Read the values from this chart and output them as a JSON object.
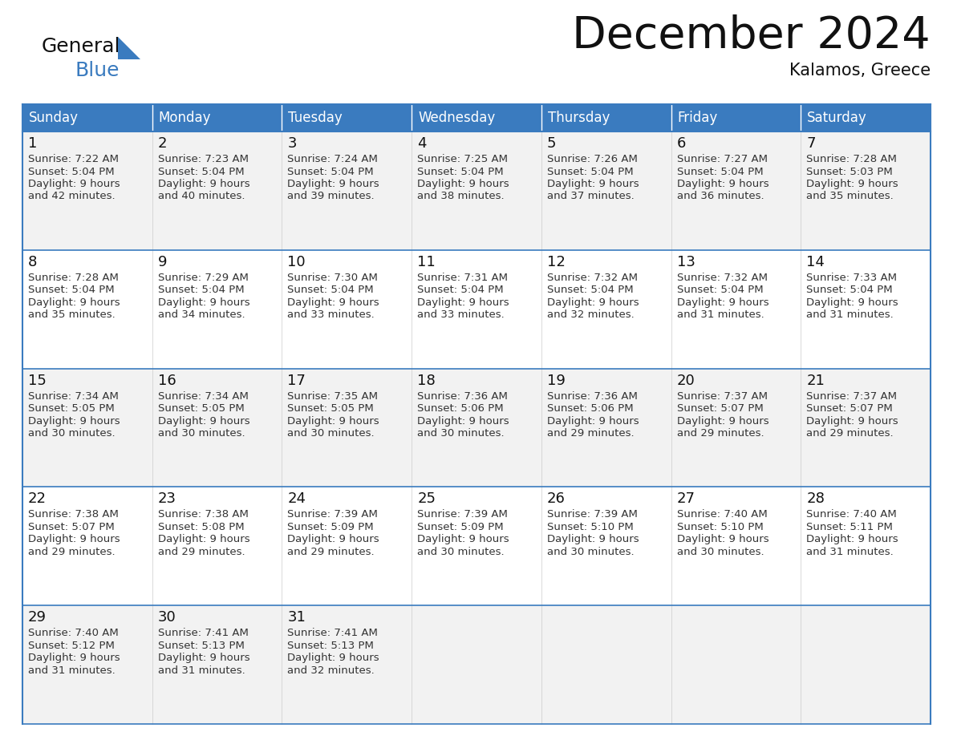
{
  "title": "December 2024",
  "subtitle": "Kalamos, Greece",
  "header_color": "#3a7bbf",
  "header_text_color": "#ffffff",
  "cell_bg_odd": "#f2f2f2",
  "cell_bg_even": "#ffffff",
  "border_color": "#3a7bbf",
  "line_color_inner": "#aaaaaa",
  "days_of_week": [
    "Sunday",
    "Monday",
    "Tuesday",
    "Wednesday",
    "Thursday",
    "Friday",
    "Saturday"
  ],
  "weeks": [
    [
      {
        "day": 1,
        "sunrise": "7:22 AM",
        "sunset": "5:04 PM",
        "daylight_h": "9 hours",
        "daylight_m": "and 42 minutes."
      },
      {
        "day": 2,
        "sunrise": "7:23 AM",
        "sunset": "5:04 PM",
        "daylight_h": "9 hours",
        "daylight_m": "and 40 minutes."
      },
      {
        "day": 3,
        "sunrise": "7:24 AM",
        "sunset": "5:04 PM",
        "daylight_h": "9 hours",
        "daylight_m": "and 39 minutes."
      },
      {
        "day": 4,
        "sunrise": "7:25 AM",
        "sunset": "5:04 PM",
        "daylight_h": "9 hours",
        "daylight_m": "and 38 minutes."
      },
      {
        "day": 5,
        "sunrise": "7:26 AM",
        "sunset": "5:04 PM",
        "daylight_h": "9 hours",
        "daylight_m": "and 37 minutes."
      },
      {
        "day": 6,
        "sunrise": "7:27 AM",
        "sunset": "5:04 PM",
        "daylight_h": "9 hours",
        "daylight_m": "and 36 minutes."
      },
      {
        "day": 7,
        "sunrise": "7:28 AM",
        "sunset": "5:03 PM",
        "daylight_h": "9 hours",
        "daylight_m": "and 35 minutes."
      }
    ],
    [
      {
        "day": 8,
        "sunrise": "7:28 AM",
        "sunset": "5:04 PM",
        "daylight_h": "9 hours",
        "daylight_m": "and 35 minutes."
      },
      {
        "day": 9,
        "sunrise": "7:29 AM",
        "sunset": "5:04 PM",
        "daylight_h": "9 hours",
        "daylight_m": "and 34 minutes."
      },
      {
        "day": 10,
        "sunrise": "7:30 AM",
        "sunset": "5:04 PM",
        "daylight_h": "9 hours",
        "daylight_m": "and 33 minutes."
      },
      {
        "day": 11,
        "sunrise": "7:31 AM",
        "sunset": "5:04 PM",
        "daylight_h": "9 hours",
        "daylight_m": "and 33 minutes."
      },
      {
        "day": 12,
        "sunrise": "7:32 AM",
        "sunset": "5:04 PM",
        "daylight_h": "9 hours",
        "daylight_m": "and 32 minutes."
      },
      {
        "day": 13,
        "sunrise": "7:32 AM",
        "sunset": "5:04 PM",
        "daylight_h": "9 hours",
        "daylight_m": "and 31 minutes."
      },
      {
        "day": 14,
        "sunrise": "7:33 AM",
        "sunset": "5:04 PM",
        "daylight_h": "9 hours",
        "daylight_m": "and 31 minutes."
      }
    ],
    [
      {
        "day": 15,
        "sunrise": "7:34 AM",
        "sunset": "5:05 PM",
        "daylight_h": "9 hours",
        "daylight_m": "and 30 minutes."
      },
      {
        "day": 16,
        "sunrise": "7:34 AM",
        "sunset": "5:05 PM",
        "daylight_h": "9 hours",
        "daylight_m": "and 30 minutes."
      },
      {
        "day": 17,
        "sunrise": "7:35 AM",
        "sunset": "5:05 PM",
        "daylight_h": "9 hours",
        "daylight_m": "and 30 minutes."
      },
      {
        "day": 18,
        "sunrise": "7:36 AM",
        "sunset": "5:06 PM",
        "daylight_h": "9 hours",
        "daylight_m": "and 30 minutes."
      },
      {
        "day": 19,
        "sunrise": "7:36 AM",
        "sunset": "5:06 PM",
        "daylight_h": "9 hours",
        "daylight_m": "and 29 minutes."
      },
      {
        "day": 20,
        "sunrise": "7:37 AM",
        "sunset": "5:07 PM",
        "daylight_h": "9 hours",
        "daylight_m": "and 29 minutes."
      },
      {
        "day": 21,
        "sunrise": "7:37 AM",
        "sunset": "5:07 PM",
        "daylight_h": "9 hours",
        "daylight_m": "and 29 minutes."
      }
    ],
    [
      {
        "day": 22,
        "sunrise": "7:38 AM",
        "sunset": "5:07 PM",
        "daylight_h": "9 hours",
        "daylight_m": "and 29 minutes."
      },
      {
        "day": 23,
        "sunrise": "7:38 AM",
        "sunset": "5:08 PM",
        "daylight_h": "9 hours",
        "daylight_m": "and 29 minutes."
      },
      {
        "day": 24,
        "sunrise": "7:39 AM",
        "sunset": "5:09 PM",
        "daylight_h": "9 hours",
        "daylight_m": "and 29 minutes."
      },
      {
        "day": 25,
        "sunrise": "7:39 AM",
        "sunset": "5:09 PM",
        "daylight_h": "9 hours",
        "daylight_m": "and 30 minutes."
      },
      {
        "day": 26,
        "sunrise": "7:39 AM",
        "sunset": "5:10 PM",
        "daylight_h": "9 hours",
        "daylight_m": "and 30 minutes."
      },
      {
        "day": 27,
        "sunrise": "7:40 AM",
        "sunset": "5:10 PM",
        "daylight_h": "9 hours",
        "daylight_m": "and 30 minutes."
      },
      {
        "day": 28,
        "sunrise": "7:40 AM",
        "sunset": "5:11 PM",
        "daylight_h": "9 hours",
        "daylight_m": "and 31 minutes."
      }
    ],
    [
      {
        "day": 29,
        "sunrise": "7:40 AM",
        "sunset": "5:12 PM",
        "daylight_h": "9 hours",
        "daylight_m": "and 31 minutes."
      },
      {
        "day": 30,
        "sunrise": "7:41 AM",
        "sunset": "5:13 PM",
        "daylight_h": "9 hours",
        "daylight_m": "and 31 minutes."
      },
      {
        "day": 31,
        "sunrise": "7:41 AM",
        "sunset": "5:13 PM",
        "daylight_h": "9 hours",
        "daylight_m": "and 32 minutes."
      },
      null,
      null,
      null,
      null
    ]
  ],
  "title_fontsize": 40,
  "subtitle_fontsize": 15,
  "header_fontsize": 12,
  "day_num_fontsize": 13,
  "cell_fontsize": 9.5
}
